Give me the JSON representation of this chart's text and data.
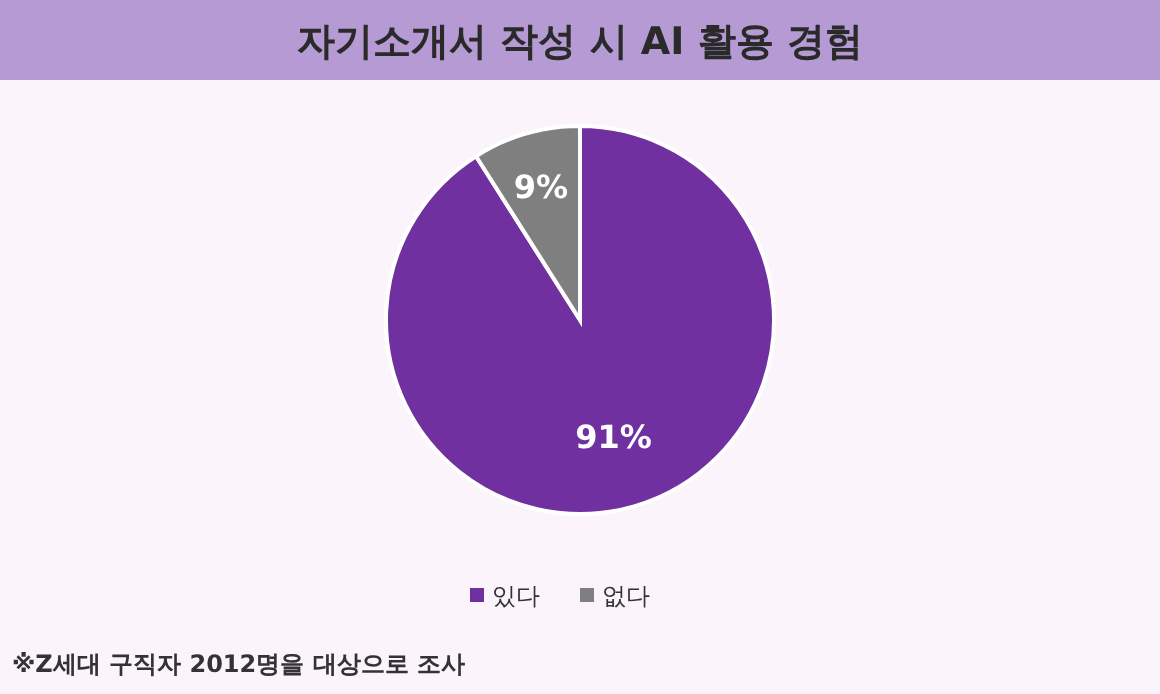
{
  "chart_data": {
    "type": "pie",
    "title": "자기소개서 작성 시 AI 활용 경험",
    "categories": [
      "있다",
      "없다"
    ],
    "values": [
      91,
      9
    ],
    "colors": [
      "#7030a0",
      "#7f7f7f"
    ],
    "value_labels": [
      "91%",
      "9%"
    ],
    "legend": "bottom",
    "annotations": [
      "※Z세대 구직자 2012명을 대상으로 조사"
    ]
  }
}
